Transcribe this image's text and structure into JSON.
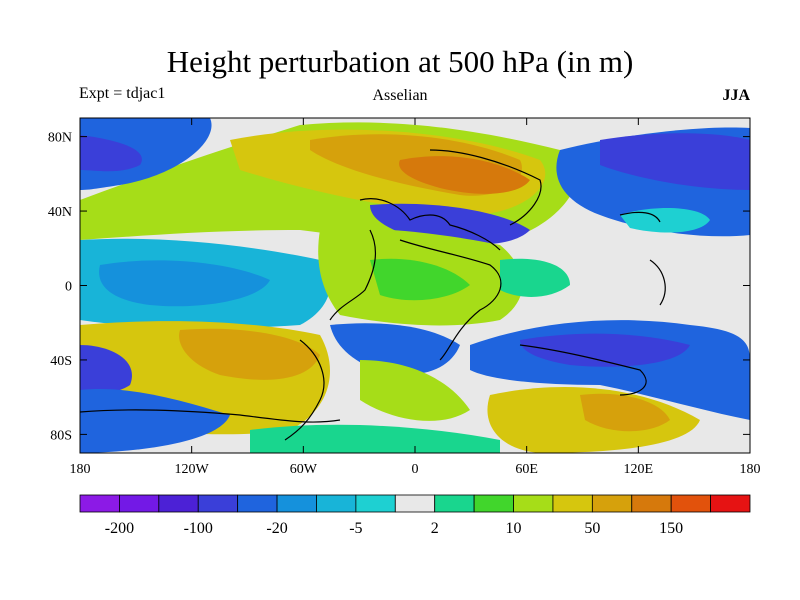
{
  "title": "Height perturbation at 500 hPa (in m)",
  "left_label": "Expt = tdjac1",
  "center_label": "Asselian",
  "right_label": "JJA",
  "lat_ticks": [
    {
      "label": "80N",
      "value": 80
    },
    {
      "label": "40N",
      "value": 40
    },
    {
      "label": "0",
      "value": 0
    },
    {
      "label": "40S",
      "value": -40
    },
    {
      "label": "80S",
      "value": -80
    }
  ],
  "lon_ticks": [
    {
      "label": "180",
      "value": -180
    },
    {
      "label": "120W",
      "value": -120
    },
    {
      "label": "60W",
      "value": -60
    },
    {
      "label": "0",
      "value": 0
    },
    {
      "label": "60E",
      "value": 60
    },
    {
      "label": "120E",
      "value": 120
    },
    {
      "label": "180",
      "value": 180
    }
  ],
  "colorbar": {
    "colors": [
      "#8c1ae6",
      "#7319e6",
      "#4c21d6",
      "#3a3fd9",
      "#1f64de",
      "#1591dc",
      "#18b4d8",
      "#1ed0d2",
      "#e8e8e8",
      "#19d68e",
      "#41d62c",
      "#a6dd18",
      "#d6c60e",
      "#d6a10c",
      "#d6790c",
      "#e2520c",
      "#e61313"
    ],
    "labels": [
      "-200",
      "-100",
      "-20",
      "-5",
      "2",
      "10",
      "50",
      "150"
    ]
  },
  "map": {
    "ocean_color": "#e8e8e8",
    "coast_color": "#000000"
  }
}
